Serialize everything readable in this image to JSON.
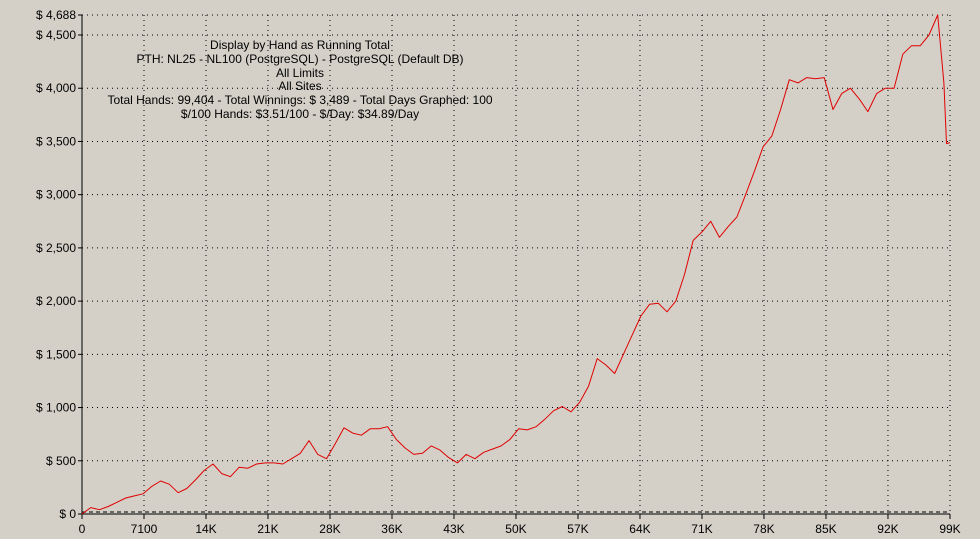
{
  "colors": {
    "background": "#d4d0c8",
    "series_line": "#e00000",
    "grid": "#000000",
    "axis": "#000000"
  },
  "info": {
    "lines": [
      "Display by Hand as Running Total",
      "PTH: NL25 - NL100 (PostgreSQL) - PostgreSQL (Default DB)",
      "All Limits",
      "All Sites",
      "Total Hands: 99,404 - Total Winnings: $ 3,489 - Total Days Graphed: 100",
      "$/100 Hands: $3.51/100 - $/Day: $34.89/Day"
    ]
  },
  "chart_data": {
    "type": "line",
    "title": "",
    "xlabel": "",
    "ylabel": "",
    "grid": true,
    "xlim": [
      0,
      99404
    ],
    "ylim": [
      0,
      4688
    ],
    "x_ticks": [
      {
        "value": 0,
        "label": "0"
      },
      {
        "value": 7100,
        "label": "7100"
      },
      {
        "value": 14200,
        "label": "14K"
      },
      {
        "value": 21300,
        "label": "21K"
      },
      {
        "value": 28400,
        "label": "28K"
      },
      {
        "value": 35500,
        "label": "36K"
      },
      {
        "value": 42600,
        "label": "43K"
      },
      {
        "value": 49700,
        "label": "50K"
      },
      {
        "value": 56800,
        "label": "57K"
      },
      {
        "value": 63900,
        "label": "64K"
      },
      {
        "value": 71000,
        "label": "71K"
      },
      {
        "value": 78100,
        "label": "78K"
      },
      {
        "value": 85200,
        "label": "85K"
      },
      {
        "value": 92300,
        "label": "92K"
      },
      {
        "value": 99404,
        "label": "99K"
      }
    ],
    "y_ticks": [
      {
        "value": 0,
        "label": "$ 0"
      },
      {
        "value": 500,
        "label": "$ 500"
      },
      {
        "value": 1000,
        "label": "$ 1,000"
      },
      {
        "value": 1500,
        "label": "$ 1,500"
      },
      {
        "value": 2000,
        "label": "$ 2,000"
      },
      {
        "value": 2500,
        "label": "$ 2,500"
      },
      {
        "value": 3000,
        "label": "$ 3,000"
      },
      {
        "value": 3500,
        "label": "$ 3,500"
      },
      {
        "value": 4000,
        "label": "$ 4,000"
      },
      {
        "value": 4500,
        "label": "$ 4,500"
      },
      {
        "value": 4688,
        "label": "$ 4,688"
      }
    ],
    "series": [
      {
        "x": [
          0,
          1000,
          2000,
          3000,
          4000,
          5000,
          6000,
          7000,
          8000,
          9000,
          10000,
          11000,
          12000,
          13000,
          14000,
          15000,
          16000,
          17000,
          18000,
          19000,
          20000,
          21000,
          22000,
          23000,
          24000,
          25000,
          26000,
          27000,
          28000,
          29000,
          30000,
          31000,
          32000,
          33000,
          34000,
          35000,
          36000,
          37000,
          38000,
          39000,
          40000,
          41000,
          42000,
          43000,
          44000,
          45000,
          46000,
          47000,
          48000,
          49000,
          50000,
          51000,
          52000,
          53000,
          54000,
          55000,
          56000,
          57000,
          58000,
          59000,
          60000,
          61000,
          62000,
          63000,
          64000,
          65000,
          66000,
          67000,
          68000,
          69000,
          70000,
          71000,
          72000,
          73000,
          74000,
          75000,
          76000,
          77000,
          78000,
          79000,
          80000,
          81000,
          82000,
          83000,
          84000,
          85000,
          86000,
          87000,
          88000,
          89000,
          90000,
          91000,
          92000,
          93000,
          94000,
          95000,
          96000,
          97000,
          98000,
          98700,
          99000,
          99404
        ],
        "y": [
          0,
          60,
          40,
          70,
          110,
          150,
          170,
          190,
          260,
          310,
          280,
          200,
          240,
          320,
          410,
          470,
          380,
          350,
          440,
          430,
          470,
          480,
          480,
          470,
          520,
          570,
          690,
          560,
          520,
          660,
          810,
          760,
          740,
          800,
          800,
          820,
          700,
          620,
          560,
          570,
          640,
          600,
          530,
          480,
          560,
          520,
          580,
          610,
          640,
          700,
          800,
          790,
          820,
          890,
          970,
          1010,
          960,
          1050,
          1200,
          1460,
          1400,
          1320,
          1500,
          1680,
          1860,
          1970,
          1980,
          1900,
          2000,
          2250,
          2570,
          2650,
          2750,
          2600,
          2700,
          2790,
          3000,
          3220,
          3450,
          3550,
          3800,
          4080,
          4050,
          4100,
          4090,
          4100,
          3800,
          3950,
          4000,
          3900,
          3780,
          3950,
          4000,
          4000,
          4320,
          4400,
          4400,
          4500,
          4688,
          4050,
          3480,
          3489
        ]
      }
    ]
  }
}
